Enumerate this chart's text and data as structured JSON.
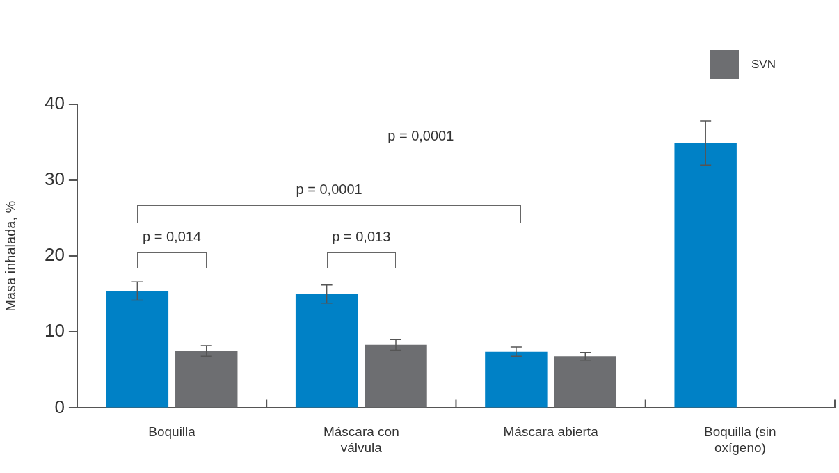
{
  "chart_data": {
    "type": "bar",
    "ylabel": "Masa inhalada, %",
    "categories": [
      "Boquilla",
      "Máscara con válvula",
      "Máscara abierta",
      "Boquilla (sin oxígeno)"
    ],
    "series": [
      {
        "color": "#0081c6",
        "values": [
          15.4,
          15.0,
          7.4,
          34.9
        ],
        "errors": [
          1.2,
          1.2,
          0.6,
          2.9
        ]
      },
      {
        "name": "SVN",
        "color": "#6d6e71",
        "values": [
          7.5,
          8.3,
          6.8,
          null
        ],
        "errors": [
          0.7,
          0.7,
          0.5,
          null
        ]
      }
    ],
    "ylim": [
      0,
      40
    ],
    "yticks": [
      0,
      10,
      20,
      30,
      40
    ],
    "grid": false,
    "legend": "top right",
    "annotations": [
      "p = 0,014",
      "p = 0,013",
      "p = 0,0001",
      "p = 0,0001"
    ]
  }
}
